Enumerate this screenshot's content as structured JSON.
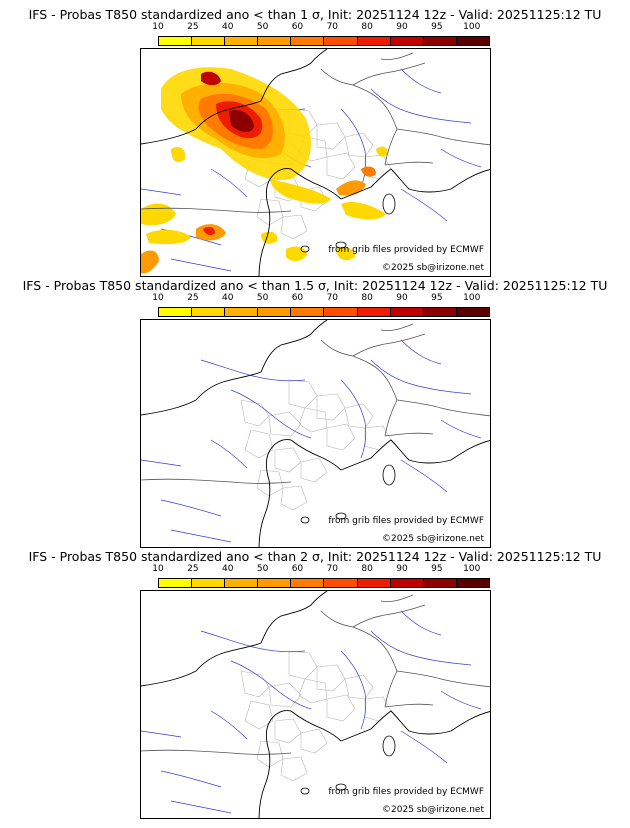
{
  "panels": [
    {
      "title": "IFS - Probas T850  standardized ano < than 1 σ, Init: 20251124 12z - Valid: 20251125:12 TU",
      "credit_source": "from grib files provided by ECMWF",
      "credit_copyright": "©2025 sb@irizone.net"
    },
    {
      "title": "IFS - Probas T850  standardized ano < than 1.5 σ, Init: 20251124 12z - Valid: 20251125:12 TU",
      "credit_source": "from grib files provided by ECMWF",
      "credit_copyright": "©2025 sb@irizone.net"
    },
    {
      "title": "IFS - Probas T850  standardized ano < than 2 σ, Init: 20251124 12z - Valid: 20251125:12 TU",
      "credit_source": "from grib files provided by ECMWF",
      "credit_copyright": "©2025 sb@irizone.net"
    }
  ],
  "colorbar": {
    "ticks": [
      "10",
      "25",
      "40",
      "50",
      "60",
      "70",
      "80",
      "90",
      "95",
      "100"
    ],
    "colors": [
      "#ffff00",
      "#ffd800",
      "#ffb000",
      "#ff9a00",
      "#ff7a00",
      "#ff4e00",
      "#ee1c00",
      "#c00000",
      "#8c0000",
      "#5a0000"
    ]
  }
}
